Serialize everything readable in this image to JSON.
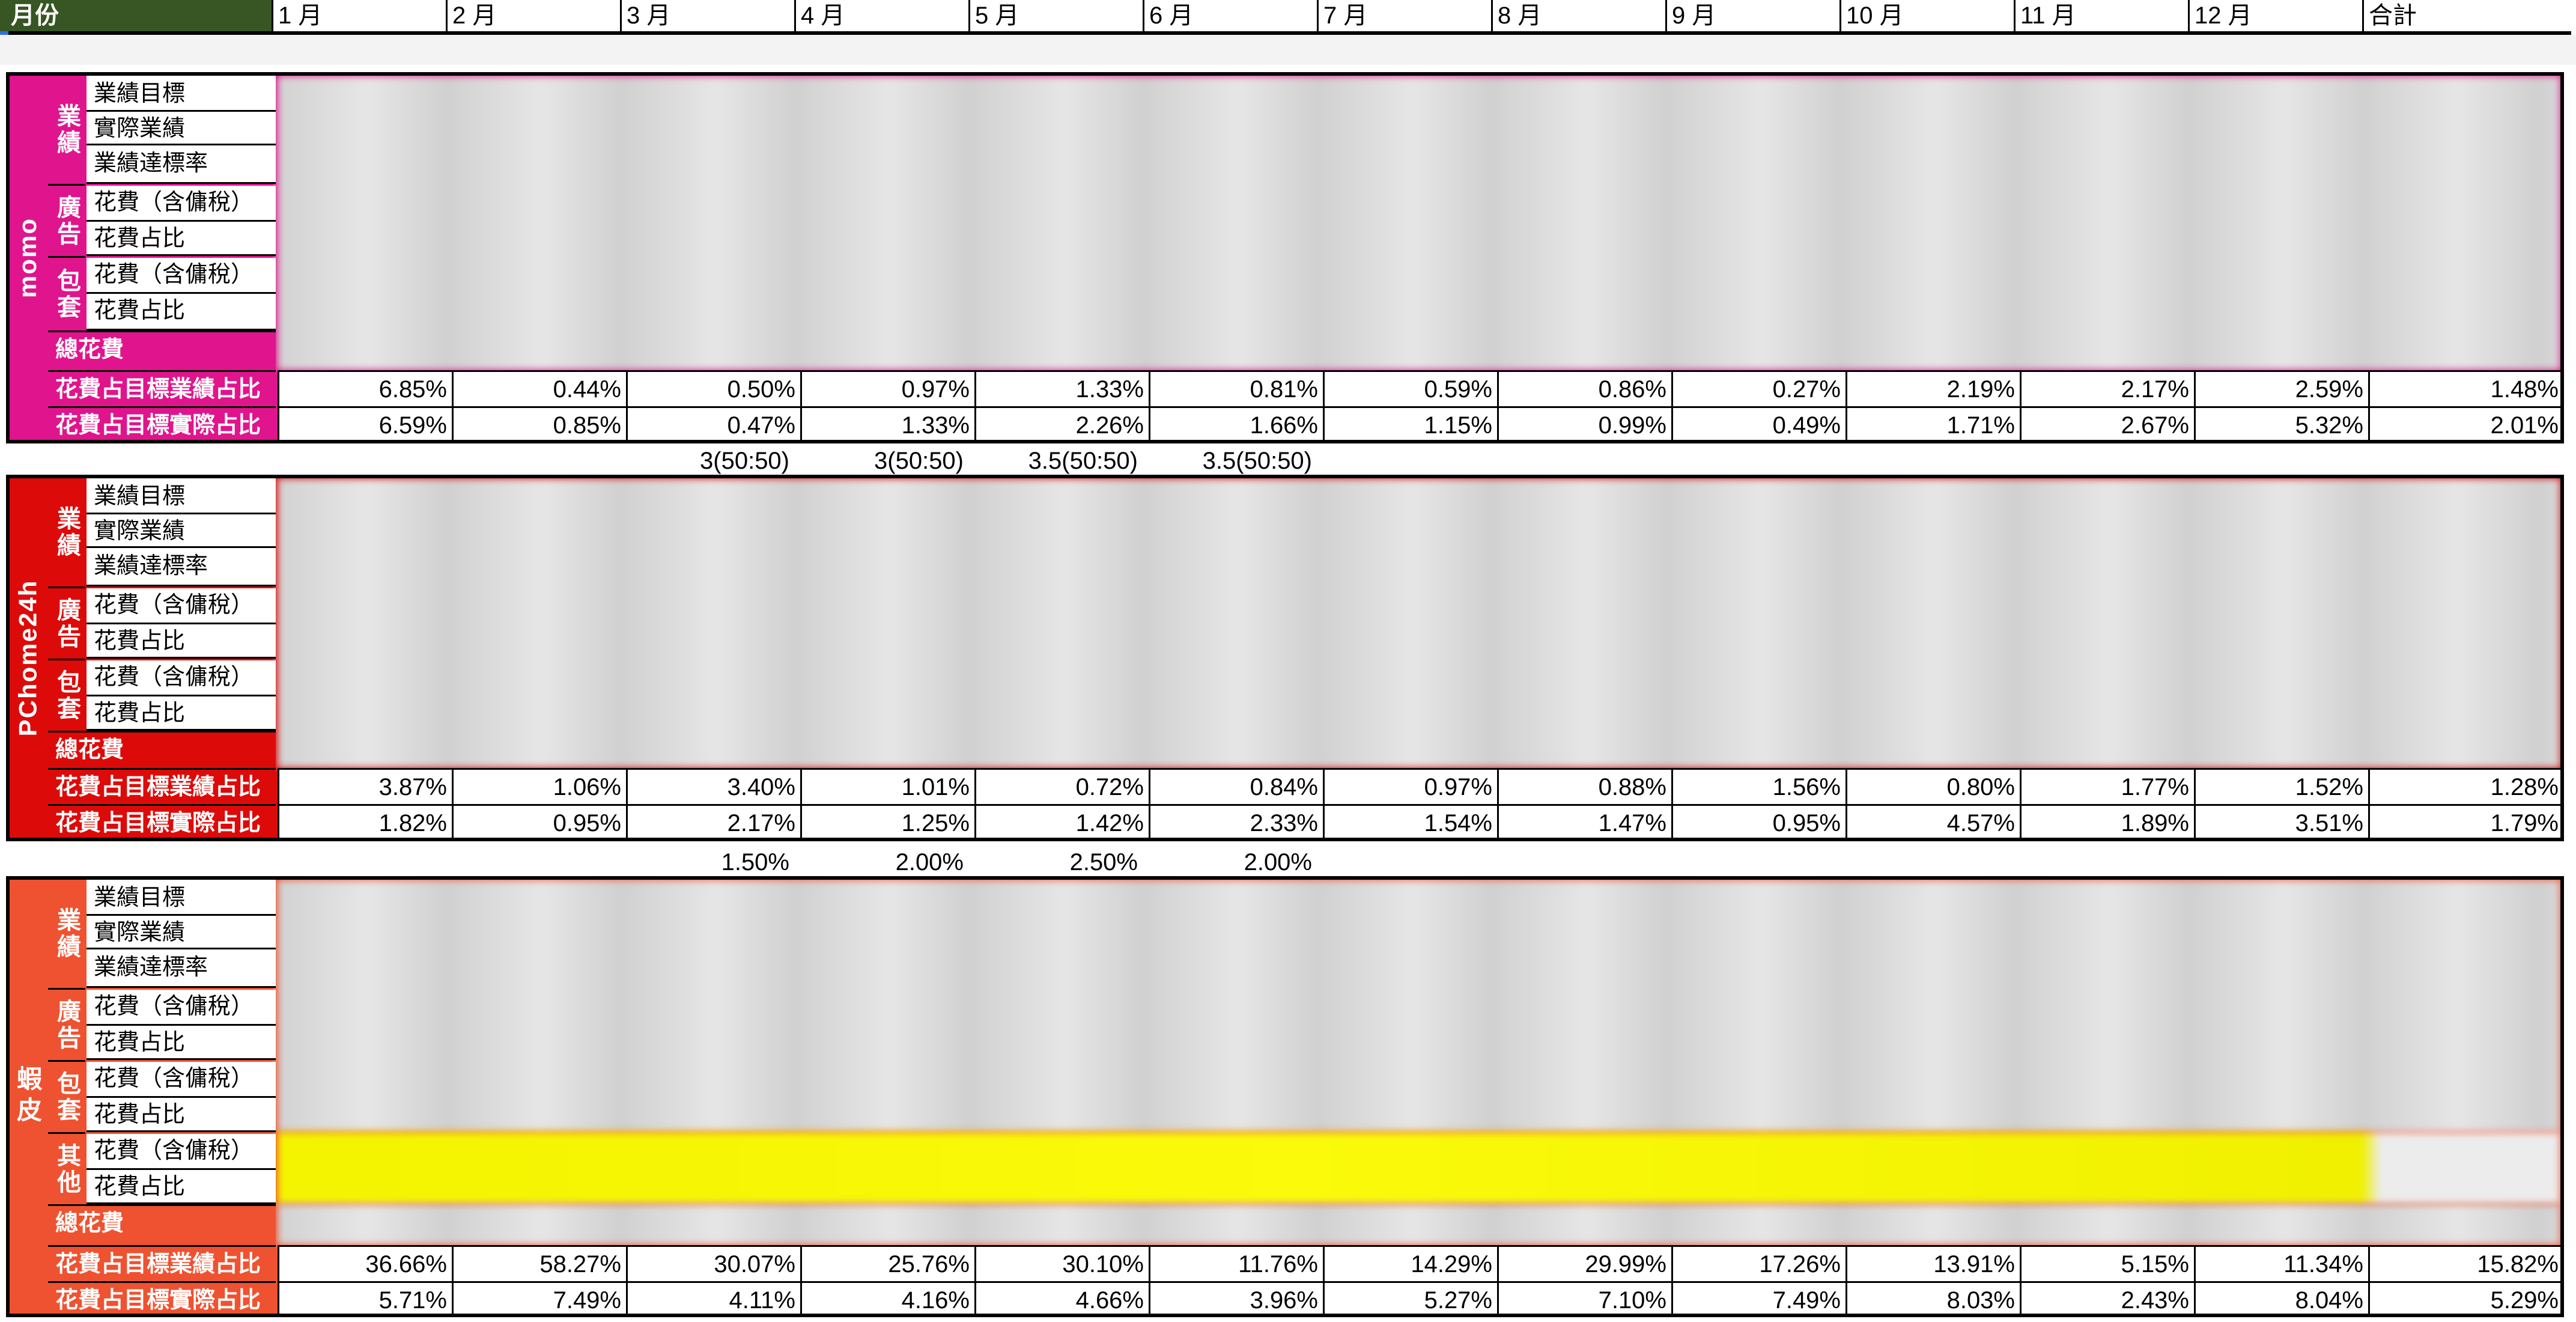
{
  "header": {
    "first": "月份",
    "months": [
      "1 月",
      "2 月",
      "3 月",
      "4 月",
      "5 月",
      "6 月",
      "7 月",
      "8 月",
      "9 月",
      "10 月",
      "11 月",
      "12 月",
      "合計"
    ]
  },
  "labels": {
    "perf_group": "業績",
    "perf_target": "業績目標",
    "perf_actual": "實際業績",
    "perf_rate": "業績達標率",
    "ad_group": "廣告",
    "pkg_group": "包套",
    "other_group": "其他",
    "cost_incl_tax": "花費（含傭稅）",
    "cost_ratio": "花費占比",
    "total_cost": "總花費",
    "ratio_target": "花費占目標業績占比",
    "ratio_actual": "花費占目標實際占比"
  },
  "colors": {
    "momo": "#e0148c",
    "pchome": "#dd0a0a",
    "shopee": "#ef5230",
    "header_dark_green": "#375623"
  },
  "sections": [
    {
      "name": "momo",
      "ratio_target": [
        "6.85%",
        "0.44%",
        "0.50%",
        "0.97%",
        "1.33%",
        "0.81%",
        "0.59%",
        "0.86%",
        "0.27%",
        "2.19%",
        "2.17%",
        "2.59%",
        "1.48%"
      ],
      "ratio_actual": [
        "6.59%",
        "0.85%",
        "0.47%",
        "1.33%",
        "2.26%",
        "1.66%",
        "1.15%",
        "0.99%",
        "0.49%",
        "1.71%",
        "2.67%",
        "5.32%",
        "2.01%"
      ]
    },
    {
      "name": "PChome24h",
      "ratio_target": [
        "3.87%",
        "1.06%",
        "3.40%",
        "1.01%",
        "0.72%",
        "0.84%",
        "0.97%",
        "0.88%",
        "1.56%",
        "0.80%",
        "1.77%",
        "1.52%",
        "1.28%"
      ],
      "ratio_actual": [
        "1.82%",
        "0.95%",
        "2.17%",
        "1.25%",
        "1.42%",
        "2.33%",
        "1.54%",
        "1.47%",
        "0.95%",
        "4.57%",
        "1.89%",
        "3.51%",
        "1.79%"
      ]
    },
    {
      "name": "蝦皮",
      "ratio_target": [
        "36.66%",
        "58.27%",
        "30.07%",
        "25.76%",
        "30.10%",
        "11.76%",
        "14.29%",
        "29.99%",
        "17.26%",
        "13.91%",
        "5.15%",
        "11.34%",
        "15.82%"
      ],
      "ratio_actual": [
        "5.71%",
        "7.49%",
        "4.11%",
        "4.16%",
        "4.66%",
        "3.96%",
        "5.27%",
        "7.10%",
        "7.49%",
        "8.03%",
        "2.43%",
        "8.04%",
        "5.29%"
      ]
    }
  ],
  "notes_after_momo": [
    "3(50:50)",
    "3(50:50)",
    "3.5(50:50)",
    "3.5(50:50)"
  ],
  "notes_after_pchome": [
    "1.50%",
    "2.00%",
    "2.50%",
    "2.00%"
  ]
}
